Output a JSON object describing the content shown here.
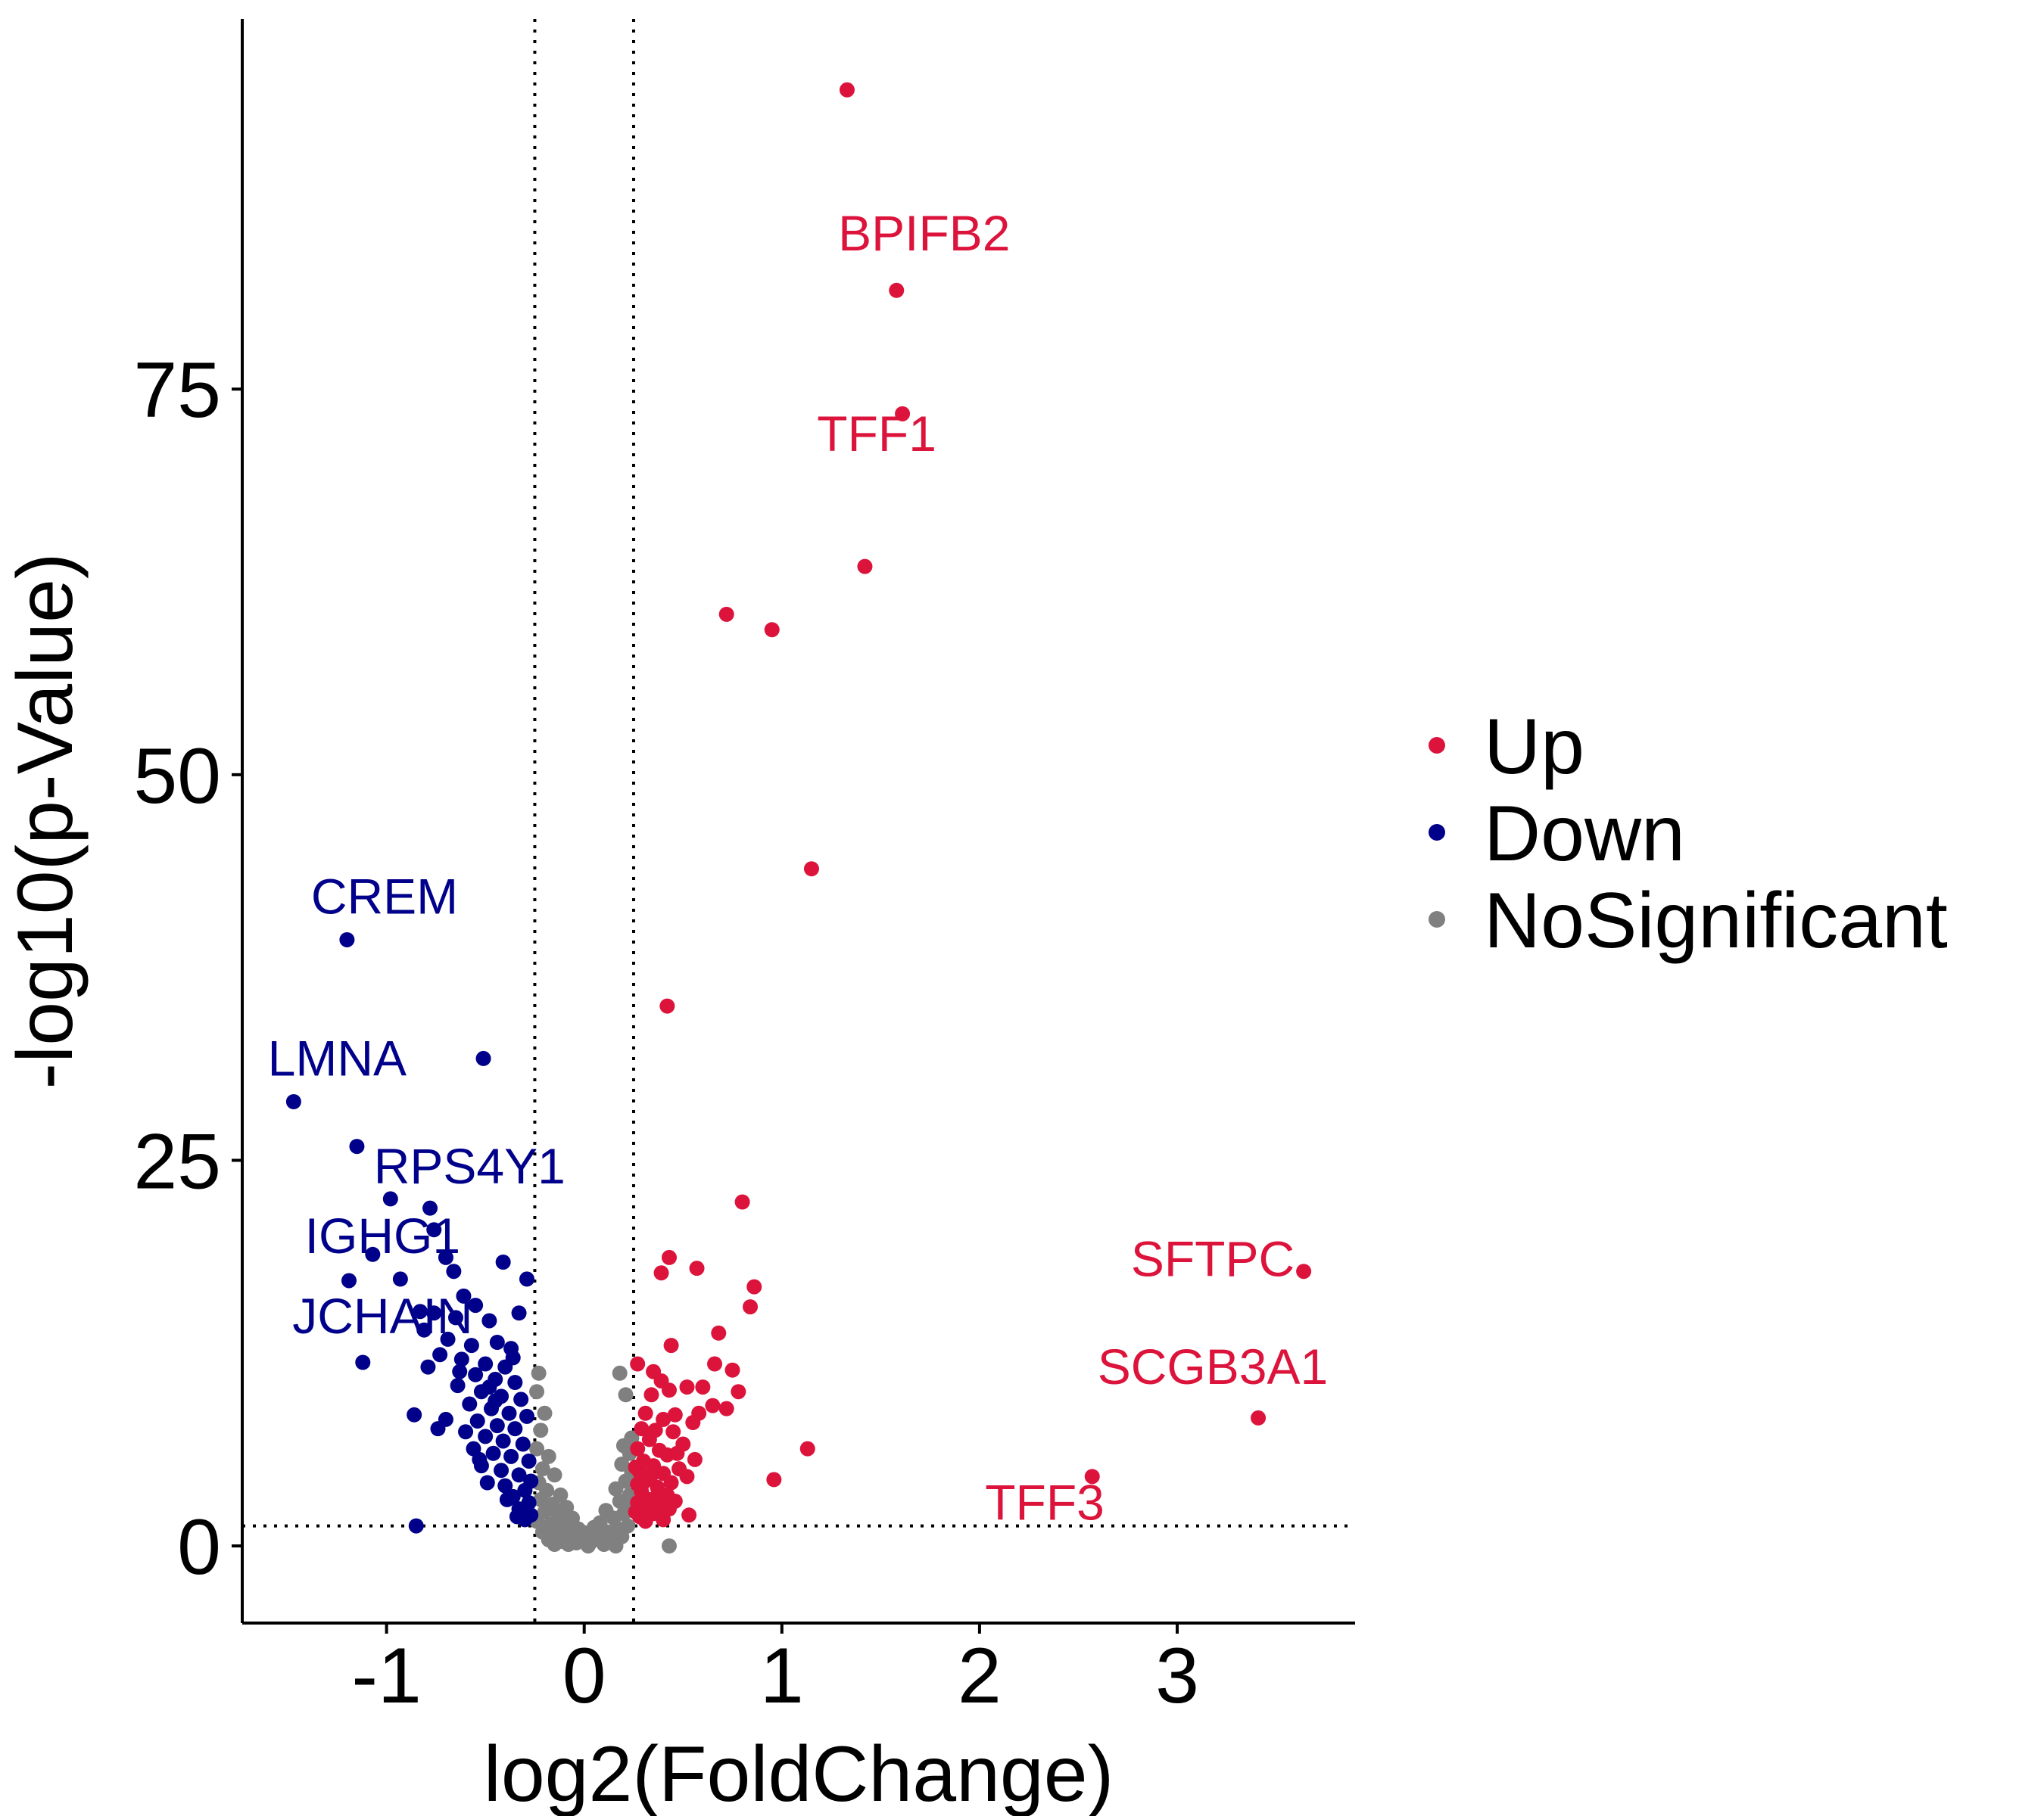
{
  "chart_data": {
    "type": "scatter",
    "title": "",
    "xlabel": "log2(FoldChange)",
    "ylabel": "-log10(p-Value)",
    "xlim": [
      -1.73,
      3.9
    ],
    "ylim": [
      -5,
      99
    ],
    "x_ticks": [
      -1,
      0,
      1,
      2,
      3
    ],
    "x_tick_labels": [
      "-1",
      "0",
      "1",
      "2",
      "3"
    ],
    "y_ticks": [
      0,
      25,
      50,
      75
    ],
    "y_tick_labels": [
      "0",
      "25",
      "50",
      "75"
    ],
    "grid": false,
    "legend_position": "right",
    "thresholds": {
      "log2fc": [
        -0.25,
        0.25
      ],
      "neg_log10_p": 1.3
    },
    "colors": {
      "Up": "#dc143c",
      "Down": "#00008b",
      "NoSignificant": "#808080"
    },
    "legend": [
      "Up",
      "Down",
      "NoSignificant"
    ],
    "series": [
      {
        "name": "Up",
        "points": [
          [
            1.33,
            94.4
          ],
          [
            1.58,
            81.4
          ],
          [
            1.61,
            73.4
          ],
          [
            1.42,
            63.5
          ],
          [
            0.72,
            60.4
          ],
          [
            0.95,
            59.4
          ],
          [
            1.15,
            43.9
          ],
          [
            0.42,
            35.0
          ],
          [
            0.8,
            22.3
          ],
          [
            0.43,
            18.7
          ],
          [
            0.57,
            18.0
          ],
          [
            0.39,
            17.7
          ],
          [
            0.86,
            16.8
          ],
          [
            0.84,
            15.5
          ],
          [
            0.68,
            13.8
          ],
          [
            0.44,
            13.0
          ],
          [
            0.66,
            11.8
          ],
          [
            0.27,
            11.8
          ],
          [
            0.75,
            11.4
          ],
          [
            0.35,
            11.3
          ],
          [
            0.39,
            10.7
          ],
          [
            0.52,
            10.3
          ],
          [
            0.6,
            10.3
          ],
          [
            0.43,
            10.1
          ],
          [
            0.78,
            10.0
          ],
          [
            0.34,
            9.8
          ],
          [
            0.65,
            9.1
          ],
          [
            0.72,
            8.9
          ],
          [
            0.58,
            8.6
          ],
          [
            0.31,
            8.6
          ],
          [
            0.4,
            8.2
          ],
          [
            0.46,
            8.5
          ],
          [
            0.55,
            8.0
          ],
          [
            0.29,
            7.6
          ],
          [
            0.36,
            7.5
          ],
          [
            0.45,
            7.4
          ],
          [
            0.33,
            6.9
          ],
          [
            0.5,
            6.6
          ],
          [
            0.27,
            6.3
          ],
          [
            0.38,
            6.2
          ],
          [
            0.42,
            5.9
          ],
          [
            0.56,
            5.6
          ],
          [
            0.3,
            5.5
          ],
          [
            0.35,
            5.2
          ],
          [
            0.48,
            5.0
          ],
          [
            0.28,
            4.8
          ],
          [
            0.4,
            4.7
          ],
          [
            0.52,
            4.5
          ],
          [
            0.32,
            4.3
          ],
          [
            0.44,
            4.1
          ],
          [
            0.27,
            4.0
          ],
          [
            0.37,
            3.8
          ],
          [
            0.29,
            3.5
          ],
          [
            0.42,
            3.3
          ],
          [
            0.33,
            3.0
          ],
          [
            0.27,
            2.8
          ],
          [
            0.38,
            2.6
          ],
          [
            0.3,
            2.3
          ],
          [
            0.35,
            2.1
          ],
          [
            0.28,
            1.9
          ],
          [
            0.4,
            1.7
          ],
          [
            0.46,
            2.9
          ],
          [
            0.31,
            1.6
          ],
          [
            0.26,
            2.2
          ],
          [
            0.53,
            2.0
          ],
          [
            0.34,
            4.6
          ],
          [
            0.47,
            6.0
          ],
          [
            0.26,
            5.1
          ],
          [
            0.43,
            2.4
          ],
          [
            0.29,
            3.9
          ],
          [
            0.36,
            3.1
          ],
          [
            1.13,
            6.3
          ],
          [
            0.96,
            4.3
          ],
          [
            3.64,
            17.8
          ],
          [
            3.41,
            8.3
          ],
          [
            2.57,
            4.5
          ]
        ]
      },
      {
        "name": "Down",
        "points": [
          [
            -1.2,
            39.3
          ],
          [
            -0.51,
            31.6
          ],
          [
            -1.47,
            28.8
          ],
          [
            -1.15,
            25.9
          ],
          [
            -0.98,
            22.5
          ],
          [
            -0.78,
            21.9
          ],
          [
            -0.76,
            20.5
          ],
          [
            -1.07,
            18.9
          ],
          [
            -0.7,
            18.7
          ],
          [
            -0.41,
            18.4
          ],
          [
            -0.66,
            17.8
          ],
          [
            -0.93,
            17.3
          ],
          [
            -1.19,
            17.2
          ],
          [
            -0.29,
            17.3
          ],
          [
            -0.61,
            16.2
          ],
          [
            -0.55,
            15.6
          ],
          [
            -0.83,
            15.2
          ],
          [
            -0.76,
            15.1
          ],
          [
            -0.65,
            14.8
          ],
          [
            -0.33,
            15.1
          ],
          [
            -0.48,
            14.6
          ],
          [
            -0.81,
            14.0
          ],
          [
            -0.69,
            13.4
          ],
          [
            -0.57,
            13.0
          ],
          [
            -0.44,
            13.2
          ],
          [
            -0.37,
            12.8
          ],
          [
            -0.73,
            12.4
          ],
          [
            -0.62,
            12.1
          ],
          [
            -0.5,
            11.8
          ],
          [
            -0.4,
            11.6
          ],
          [
            -1.12,
            11.9
          ],
          [
            -0.79,
            11.6
          ],
          [
            -0.55,
            11.1
          ],
          [
            -0.45,
            10.8
          ],
          [
            -0.35,
            10.6
          ],
          [
            -0.64,
            10.4
          ],
          [
            -0.52,
            10.0
          ],
          [
            -0.42,
            9.7
          ],
          [
            -0.32,
            9.5
          ],
          [
            -0.58,
            9.2
          ],
          [
            -0.47,
            8.9
          ],
          [
            -0.38,
            8.6
          ],
          [
            -0.29,
            8.4
          ],
          [
            -0.54,
            8.1
          ],
          [
            -0.44,
            7.8
          ],
          [
            -0.35,
            7.6
          ],
          [
            -0.6,
            7.4
          ],
          [
            -0.5,
            7.1
          ],
          [
            -0.41,
            6.8
          ],
          [
            -0.31,
            6.6
          ],
          [
            -0.56,
            6.3
          ],
          [
            -0.46,
            6.0
          ],
          [
            -0.37,
            5.8
          ],
          [
            -0.28,
            5.5
          ],
          [
            -0.52,
            5.2
          ],
          [
            -0.42,
            4.9
          ],
          [
            -0.33,
            4.6
          ],
          [
            -0.27,
            4.2
          ],
          [
            -0.4,
            3.9
          ],
          [
            -0.3,
            3.6
          ],
          [
            -0.36,
            3.2
          ],
          [
            -0.28,
            2.8
          ],
          [
            -0.33,
            2.4
          ],
          [
            -0.27,
            2.0
          ],
          [
            -0.3,
            1.7
          ],
          [
            -0.86,
            8.5
          ],
          [
            -0.74,
            7.6
          ],
          [
            -0.53,
            5.6
          ],
          [
            -0.49,
            4.1
          ],
          [
            -0.39,
            3.0
          ],
          [
            -0.34,
            1.9
          ],
          [
            -0.45,
            9.4
          ],
          [
            -0.63,
            11.3
          ],
          [
            -0.36,
            12.2
          ],
          [
            -0.48,
            10.3
          ],
          [
            -0.85,
            1.3
          ],
          [
            -0.7,
            8.2
          ]
        ]
      },
      {
        "name": "NoSignificant",
        "points": [
          [
            -0.23,
            11.2
          ],
          [
            -0.24,
            10.0
          ],
          [
            -0.2,
            8.6
          ],
          [
            -0.22,
            7.5
          ],
          [
            -0.24,
            6.3
          ],
          [
            -0.18,
            5.8
          ],
          [
            -0.21,
            5.0
          ],
          [
            -0.15,
            4.6
          ],
          [
            -0.23,
            4.1
          ],
          [
            -0.19,
            3.6
          ],
          [
            -0.12,
            3.3
          ],
          [
            -0.22,
            3.0
          ],
          [
            -0.16,
            2.7
          ],
          [
            -0.09,
            2.5
          ],
          [
            -0.2,
            2.2
          ],
          [
            -0.13,
            2.0
          ],
          [
            -0.06,
            1.8
          ],
          [
            -0.24,
            1.6
          ],
          [
            -0.17,
            1.4
          ],
          [
            -0.1,
            1.3
          ],
          [
            -0.03,
            1.1
          ],
          [
            -0.21,
            0.9
          ],
          [
            -0.14,
            0.8
          ],
          [
            -0.07,
            0.6
          ],
          [
            0.0,
            0.5
          ],
          [
            -0.18,
            0.4
          ],
          [
            -0.11,
            0.3
          ],
          [
            -0.04,
            0.2
          ],
          [
            0.03,
            0.2
          ],
          [
            0.09,
            0.3
          ],
          [
            0.14,
            0.4
          ],
          [
            0.19,
            0.6
          ],
          [
            0.06,
            0.7
          ],
          [
            0.12,
            0.9
          ],
          [
            0.17,
            1.1
          ],
          [
            0.22,
            1.3
          ],
          [
            0.08,
            1.5
          ],
          [
            0.15,
            1.8
          ],
          [
            0.2,
            2.1
          ],
          [
            0.24,
            2.5
          ],
          [
            0.11,
            2.3
          ],
          [
            0.18,
            2.9
          ],
          [
            0.23,
            3.3
          ],
          [
            0.16,
            3.7
          ],
          [
            0.21,
            4.2
          ],
          [
            0.24,
            4.8
          ],
          [
            0.19,
            5.3
          ],
          [
            0.23,
            6.0
          ],
          [
            0.24,
            7.0
          ],
          [
            0.2,
            6.5
          ],
          [
            0.18,
            11.2
          ],
          [
            0.21,
            9.8
          ],
          [
            0.43,
            0.0
          ],
          [
            0.05,
            1.2
          ],
          [
            -0.01,
            0.9
          ],
          [
            0.1,
            0.1
          ],
          [
            -0.08,
            0.1
          ],
          [
            0.02,
            0.0
          ],
          [
            0.16,
            0.0
          ],
          [
            -0.15,
            0.1
          ]
        ]
      }
    ],
    "annotations": [
      {
        "text": "BPIFB2",
        "x": 1.72,
        "y": 84.0,
        "series": "Up"
      },
      {
        "text": "TFF1",
        "x": 1.48,
        "y": 71.0,
        "series": "Up"
      },
      {
        "text": "SFTPC",
        "x": 3.18,
        "y": 17.5,
        "series": "Up"
      },
      {
        "text": "SCGB3A1",
        "x": 3.18,
        "y": 10.5,
        "series": "Up"
      },
      {
        "text": "TFF3",
        "x": 2.33,
        "y": 1.7,
        "series": "Up"
      },
      {
        "text": "CREM",
        "x": -1.01,
        "y": 41.0,
        "series": "Down"
      },
      {
        "text": "LMNA",
        "x": -1.25,
        "y": 30.5,
        "series": "Down"
      },
      {
        "text": "RPS4Y1",
        "x": -0.58,
        "y": 23.5,
        "series": "Down"
      },
      {
        "text": "IGHG1",
        "x": -1.02,
        "y": 19.0,
        "series": "Down"
      },
      {
        "text": "JCHAIN",
        "x": -1.02,
        "y": 13.8,
        "series": "Down"
      }
    ]
  }
}
